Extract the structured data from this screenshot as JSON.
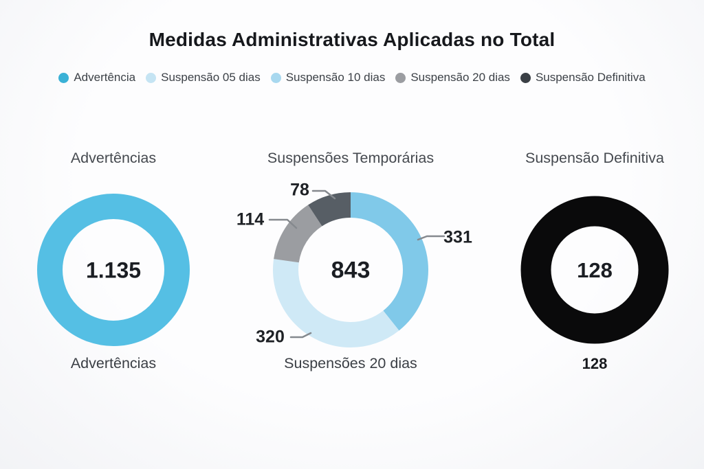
{
  "page": {
    "title": "Medidas Administrativas Aplicadas no Total"
  },
  "legend": {
    "items": [
      {
        "label": "Advertência",
        "color": "#3ab1d6"
      },
      {
        "label": "Suspensão 05 dias",
        "color": "#c5e4f3"
      },
      {
        "label": "Suspensão 10 dias",
        "color": "#a8d8ef"
      },
      {
        "label": "Suspensão 20 dias",
        "color": "#9b9da1"
      },
      {
        "label": "Suspensão Definitiva",
        "color": "#3a3f45"
      }
    ]
  },
  "chart_data": [
    {
      "type": "pie",
      "variant": "donut",
      "title": "Advertências",
      "center_value": "1.135",
      "caption": "Advertências",
      "segments": [
        {
          "value": 1135,
          "color": "#55bfe4",
          "callout": ""
        }
      ]
    },
    {
      "type": "pie",
      "variant": "donut",
      "title": "Suspensões Temporárias",
      "center_value": "843",
      "caption": "Suspensões 20 dias",
      "segments": [
        {
          "value": 331,
          "color": "#80c9e9",
          "callout": "331"
        },
        {
          "value": 320,
          "color": "#cfe9f6",
          "callout": "320"
        },
        {
          "value": 114,
          "color": "#9b9da1",
          "callout": "114"
        },
        {
          "value": 78,
          "color": "#575e65",
          "callout": "78"
        }
      ]
    },
    {
      "type": "pie",
      "variant": "donut",
      "title": "Suspensão Definitiva",
      "center_value": "128",
      "caption": "128",
      "segments": [
        {
          "value": 128,
          "color": "#0a0a0b",
          "callout": ""
        }
      ]
    }
  ]
}
